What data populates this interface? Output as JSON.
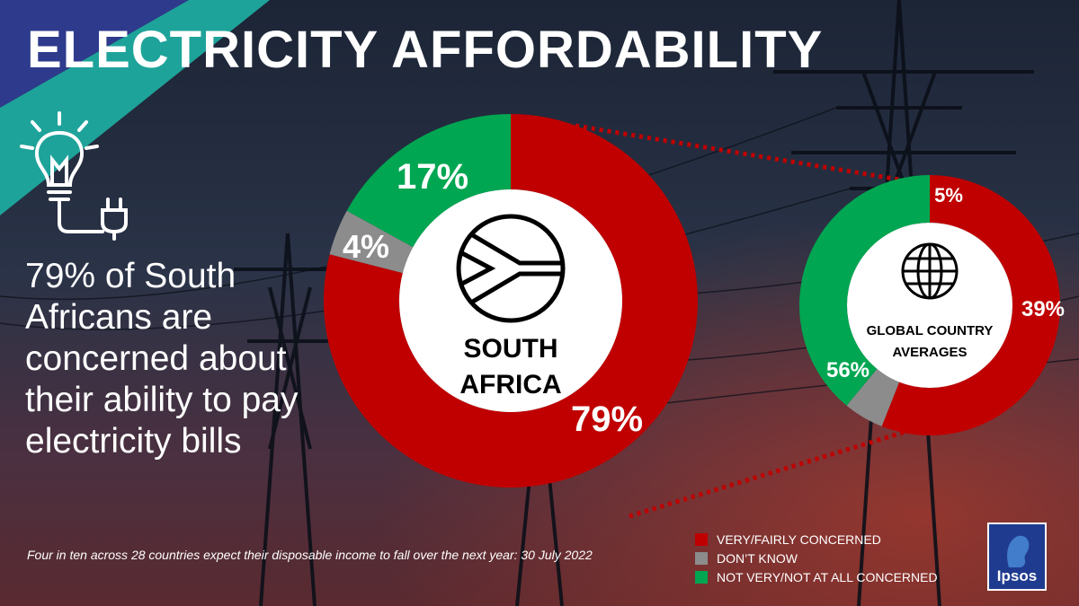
{
  "title": "ELECTRICITY AFFORDABILITY",
  "headline": "79% of South Africans are concerned about their ability to pay electricity bills",
  "footnote": "Four in ten across 28 countries expect their disposable income to fall over the next year: 30 July 2022",
  "brand": "Ipsos",
  "colors": {
    "concerned": "#c00000",
    "dont_know": "#8c8c8c",
    "not_concerned": "#00a651",
    "stripe_blue": "#2e3a8c",
    "stripe_teal": "#1ea39a"
  },
  "chart_data": [
    {
      "type": "pie",
      "center_label": [
        "SOUTH",
        "AFRICA"
      ],
      "icon": "south-africa-flag-icon",
      "categories": [
        "VERY/FAIRLY CONCERNED",
        "DON'T KNOW",
        "NOT VERY/NOT AT ALL CONCERNED"
      ],
      "values": [
        79,
        4,
        17
      ],
      "labels": [
        "79%",
        "4%",
        "17%"
      ]
    },
    {
      "type": "pie",
      "center_label": [
        "GLOBAL COUNTRY",
        "AVERAGES"
      ],
      "icon": "globe-icon",
      "categories": [
        "VERY/FAIRLY CONCERNED",
        "DON'T KNOW",
        "NOT VERY/NOT AT ALL CONCERNED"
      ],
      "values": [
        56,
        5,
        39
      ],
      "labels": [
        "56%",
        "5%",
        "39%"
      ]
    }
  ],
  "legend": [
    {
      "label": "VERY/FAIRLY CONCERNED",
      "color": "#c00000"
    },
    {
      "label": "DON’T KNOW",
      "color": "#8c8c8c"
    },
    {
      "label": "NOT VERY/NOT AT ALL CONCERNED",
      "color": "#00a651"
    }
  ]
}
